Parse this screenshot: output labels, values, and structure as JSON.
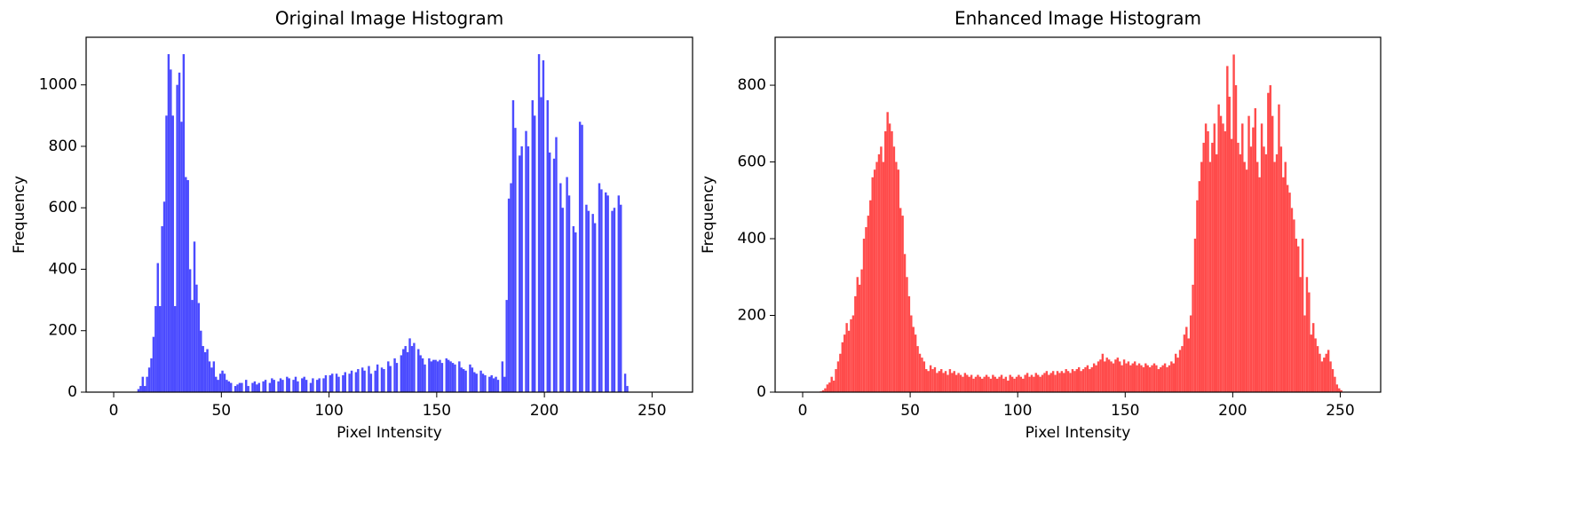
{
  "chart_data": [
    {
      "type": "histogram",
      "title": "Original Image Histogram",
      "xlabel": "Pixel Intensity",
      "ylabel": "Frequency",
      "color": "#4b4bff",
      "bins": [
        0,
        1,
        2,
        3,
        4,
        5,
        6,
        7,
        8,
        9,
        10,
        11,
        12,
        13,
        14,
        15,
        16,
        17,
        18,
        19,
        20,
        21,
        22,
        23,
        24,
        25,
        26,
        27,
        28,
        29,
        30,
        31,
        32,
        33,
        34,
        35,
        36,
        37,
        38,
        39,
        40,
        41,
        42,
        43,
        44,
        45,
        46,
        47,
        48,
        49,
        50,
        51,
        52,
        53,
        54,
        55,
        56,
        57,
        58,
        59,
        60,
        61,
        62,
        63,
        64,
        65,
        66,
        67,
        68,
        69,
        70,
        71,
        72,
        73,
        74,
        75,
        76,
        77,
        78,
        79,
        80,
        81,
        82,
        83,
        84,
        85,
        86,
        87,
        88,
        89,
        90,
        91,
        92,
        93,
        94,
        95,
        96,
        97,
        98,
        99,
        100,
        101,
        102,
        103,
        104,
        105,
        106,
        107,
        108,
        109,
        110,
        111,
        112,
        113,
        114,
        115,
        116,
        117,
        118,
        119,
        120,
        121,
        122,
        123,
        124,
        125,
        126,
        127,
        128,
        129,
        130,
        131,
        132,
        133,
        134,
        135,
        136,
        137,
        138,
        139,
        140,
        141,
        142,
        143,
        144,
        145,
        146,
        147,
        148,
        149,
        150,
        151,
        152,
        153,
        154,
        155,
        156,
        157,
        158,
        159,
        160,
        161,
        162,
        163,
        164,
        165,
        166,
        167,
        168,
        169,
        170,
        171,
        172,
        173,
        174,
        175,
        176,
        177,
        178,
        179,
        180,
        181,
        182,
        183,
        184,
        185,
        186,
        187,
        188,
        189,
        190,
        191,
        192,
        193,
        194,
        195,
        196,
        197,
        198,
        199,
        200,
        201,
        202,
        203,
        204,
        205,
        206,
        207,
        208,
        209,
        210,
        211,
        212,
        213,
        214,
        215,
        216,
        217,
        218,
        219,
        220,
        221,
        222,
        223,
        224,
        225,
        226,
        227,
        228,
        229,
        230,
        231,
        232,
        233,
        234,
        235,
        236,
        237,
        238,
        239,
        240,
        241,
        242,
        243,
        244,
        245,
        246,
        247,
        248,
        249,
        250,
        251,
        252,
        253,
        254,
        255,
        256
      ],
      "values": [
        0,
        0,
        0,
        0,
        0,
        0,
        0,
        0,
        0,
        0,
        0,
        10,
        20,
        50,
        20,
        50,
        80,
        110,
        180,
        280,
        420,
        280,
        540,
        620,
        900,
        1100,
        1050,
        900,
        280,
        1000,
        1040,
        880,
        1100,
        700,
        690,
        400,
        300,
        490,
        350,
        290,
        200,
        150,
        130,
        140,
        100,
        80,
        100,
        50,
        40,
        60,
        70,
        60,
        40,
        35,
        30,
        0,
        20,
        25,
        30,
        30,
        0,
        40,
        20,
        0,
        30,
        35,
        25,
        30,
        0,
        35,
        40,
        0,
        30,
        45,
        40,
        0,
        35,
        45,
        40,
        0,
        50,
        45,
        0,
        40,
        50,
        35,
        0,
        45,
        50,
        40,
        0,
        30,
        45,
        0,
        40,
        45,
        0,
        45,
        55,
        0,
        55,
        60,
        0,
        60,
        50,
        0,
        55,
        65,
        0,
        60,
        70,
        0,
        65,
        75,
        0,
        80,
        70,
        0,
        85,
        60,
        0,
        70,
        90,
        0,
        80,
        75,
        0,
        100,
        85,
        0,
        110,
        95,
        0,
        120,
        140,
        150,
        130,
        175,
        150,
        160,
        0,
        140,
        120,
        110,
        90,
        0,
        110,
        100,
        105,
        105,
        100,
        105,
        95,
        0,
        110,
        105,
        100,
        95,
        90,
        0,
        100,
        80,
        75,
        70,
        0,
        90,
        80,
        65,
        60,
        0,
        70,
        60,
        55,
        0,
        50,
        55,
        45,
        50,
        40,
        0,
        100,
        50,
        300,
        630,
        680,
        950,
        860,
        0,
        770,
        800,
        0,
        850,
        800,
        0,
        950,
        900,
        0,
        1100,
        960,
        1080,
        0,
        950,
        780,
        0,
        760,
        830,
        0,
        680,
        600,
        0,
        700,
        640,
        0,
        540,
        520,
        0,
        880,
        870,
        0,
        610,
        590,
        0,
        580,
        550,
        0,
        680,
        660,
        0,
        650,
        640,
        0,
        590,
        600,
        0,
        640,
        610,
        0,
        60,
        20,
        0,
        0,
        0,
        0,
        0,
        0,
        0,
        0,
        0,
        0,
        0,
        0,
        0,
        0,
        0,
        0,
        0
      ],
      "xlim": [
        -12.8,
        268.8
      ],
      "ylim": [
        0,
        1155
      ],
      "xticks": [
        0,
        50,
        100,
        150,
        200,
        250
      ],
      "yticks": [
        0,
        200,
        400,
        600,
        800,
        1000
      ]
    },
    {
      "type": "histogram",
      "title": "Enhanced Image Histogram",
      "xlabel": "Pixel Intensity",
      "ylabel": "Frequency",
      "color": "#ff4b4b",
      "bins": [
        0,
        1,
        2,
        3,
        4,
        5,
        6,
        7,
        8,
        9,
        10,
        11,
        12,
        13,
        14,
        15,
        16,
        17,
        18,
        19,
        20,
        21,
        22,
        23,
        24,
        25,
        26,
        27,
        28,
        29,
        30,
        31,
        32,
        33,
        34,
        35,
        36,
        37,
        38,
        39,
        40,
        41,
        42,
        43,
        44,
        45,
        46,
        47,
        48,
        49,
        50,
        51,
        52,
        53,
        54,
        55,
        56,
        57,
        58,
        59,
        60,
        61,
        62,
        63,
        64,
        65,
        66,
        67,
        68,
        69,
        70,
        71,
        72,
        73,
        74,
        75,
        76,
        77,
        78,
        79,
        80,
        81,
        82,
        83,
        84,
        85,
        86,
        87,
        88,
        89,
        90,
        91,
        92,
        93,
        94,
        95,
        96,
        97,
        98,
        99,
        100,
        101,
        102,
        103,
        104,
        105,
        106,
        107,
        108,
        109,
        110,
        111,
        112,
        113,
        114,
        115,
        116,
        117,
        118,
        119,
        120,
        121,
        122,
        123,
        124,
        125,
        126,
        127,
        128,
        129,
        130,
        131,
        132,
        133,
        134,
        135,
        136,
        137,
        138,
        139,
        140,
        141,
        142,
        143,
        144,
        145,
        146,
        147,
        148,
        149,
        150,
        151,
        152,
        153,
        154,
        155,
        156,
        157,
        158,
        159,
        160,
        161,
        162,
        163,
        164,
        165,
        166,
        167,
        168,
        169,
        170,
        171,
        172,
        173,
        174,
        175,
        176,
        177,
        178,
        179,
        180,
        181,
        182,
        183,
        184,
        185,
        186,
        187,
        188,
        189,
        190,
        191,
        192,
        193,
        194,
        195,
        196,
        197,
        198,
        199,
        200,
        201,
        202,
        203,
        204,
        205,
        206,
        207,
        208,
        209,
        210,
        211,
        212,
        213,
        214,
        215,
        216,
        217,
        218,
        219,
        220,
        221,
        222,
        223,
        224,
        225,
        226,
        227,
        228,
        229,
        230,
        231,
        232,
        233,
        234,
        235,
        236,
        237,
        238,
        239,
        240,
        241,
        242,
        243,
        244,
        245,
        246,
        247,
        248,
        249,
        250,
        251,
        252,
        253,
        254,
        255,
        256
      ],
      "values": [
        0,
        0,
        0,
        0,
        0,
        0,
        0,
        0,
        2,
        5,
        10,
        20,
        25,
        40,
        30,
        60,
        80,
        100,
        130,
        150,
        180,
        160,
        190,
        200,
        250,
        300,
        280,
        320,
        400,
        430,
        460,
        500,
        560,
        580,
        600,
        620,
        640,
        600,
        680,
        730,
        700,
        680,
        640,
        600,
        580,
        480,
        460,
        360,
        300,
        250,
        200,
        170,
        150,
        120,
        100,
        90,
        80,
        60,
        55,
        70,
        60,
        65,
        50,
        55,
        60,
        50,
        55,
        45,
        60,
        50,
        55,
        45,
        50,
        45,
        40,
        50,
        45,
        40,
        45,
        35,
        40,
        45,
        40,
        35,
        40,
        45,
        40,
        35,
        45,
        40,
        35,
        40,
        45,
        35,
        40,
        30,
        45,
        40,
        35,
        40,
        45,
        40,
        35,
        45,
        50,
        40,
        45,
        40,
        50,
        45,
        40,
        45,
        50,
        55,
        45,
        50,
        55,
        45,
        55,
        50,
        55,
        50,
        60,
        55,
        50,
        60,
        55,
        60,
        65,
        55,
        60,
        65,
        70,
        60,
        65,
        75,
        70,
        80,
        85,
        100,
        80,
        90,
        85,
        80,
        75,
        85,
        90,
        80,
        70,
        85,
        75,
        80,
        70,
        75,
        80,
        70,
        75,
        70,
        65,
        75,
        70,
        65,
        70,
        75,
        70,
        60,
        65,
        70,
        75,
        65,
        70,
        80,
        75,
        100,
        90,
        110,
        120,
        150,
        170,
        140,
        200,
        280,
        400,
        500,
        550,
        600,
        650,
        700,
        680,
        600,
        650,
        700,
        620,
        750,
        720,
        700,
        680,
        850,
        770,
        660,
        880,
        800,
        650,
        620,
        700,
        600,
        580,
        720,
        640,
        690,
        740,
        600,
        560,
        700,
        640,
        620,
        780,
        800,
        720,
        600,
        620,
        750,
        640,
        560,
        600,
        540,
        520,
        480,
        450,
        400,
        380,
        300,
        400,
        200,
        300,
        260,
        150,
        180,
        140,
        120,
        100,
        80,
        90,
        100,
        110,
        80,
        60,
        40,
        20,
        10,
        5,
        0,
        0,
        0,
        0,
        0
      ],
      "xlim": [
        -12.8,
        268.8
      ],
      "ylim": [
        0,
        925
      ],
      "xticks": [
        0,
        50,
        100,
        150,
        200,
        250
      ],
      "yticks": [
        0,
        200,
        400,
        600,
        800
      ]
    }
  ]
}
